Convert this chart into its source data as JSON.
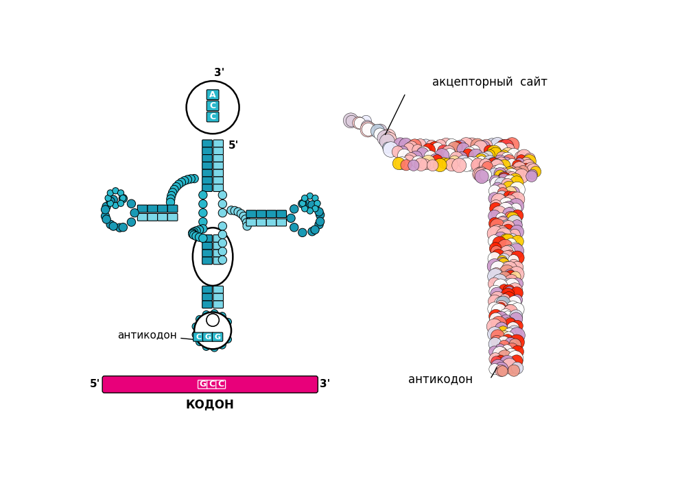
{
  "bg_color": "#ffffff",
  "dark_teal": "#1a9ab5",
  "light_teal": "#7dd8e8",
  "mid_teal": "#29b8cc",
  "magenta": "#e8007a",
  "white": "#ffffff",
  "black": "#000000",
  "acc_label": "акцепторный  сайт",
  "anticodon_label_left": "антикодон",
  "anticodon_label_right": "антикодон",
  "codon_label": "КОДОН",
  "acc_seq": [
    "A",
    "C",
    "C"
  ],
  "anticodon_seq": [
    "C",
    "G",
    "G"
  ],
  "codon_seq": [
    "G",
    "C",
    "C"
  ],
  "three_prime": "3'",
  "five_prime_top": "5'",
  "five_prime_bottom": "5'",
  "three_prime_bottom": "3'"
}
